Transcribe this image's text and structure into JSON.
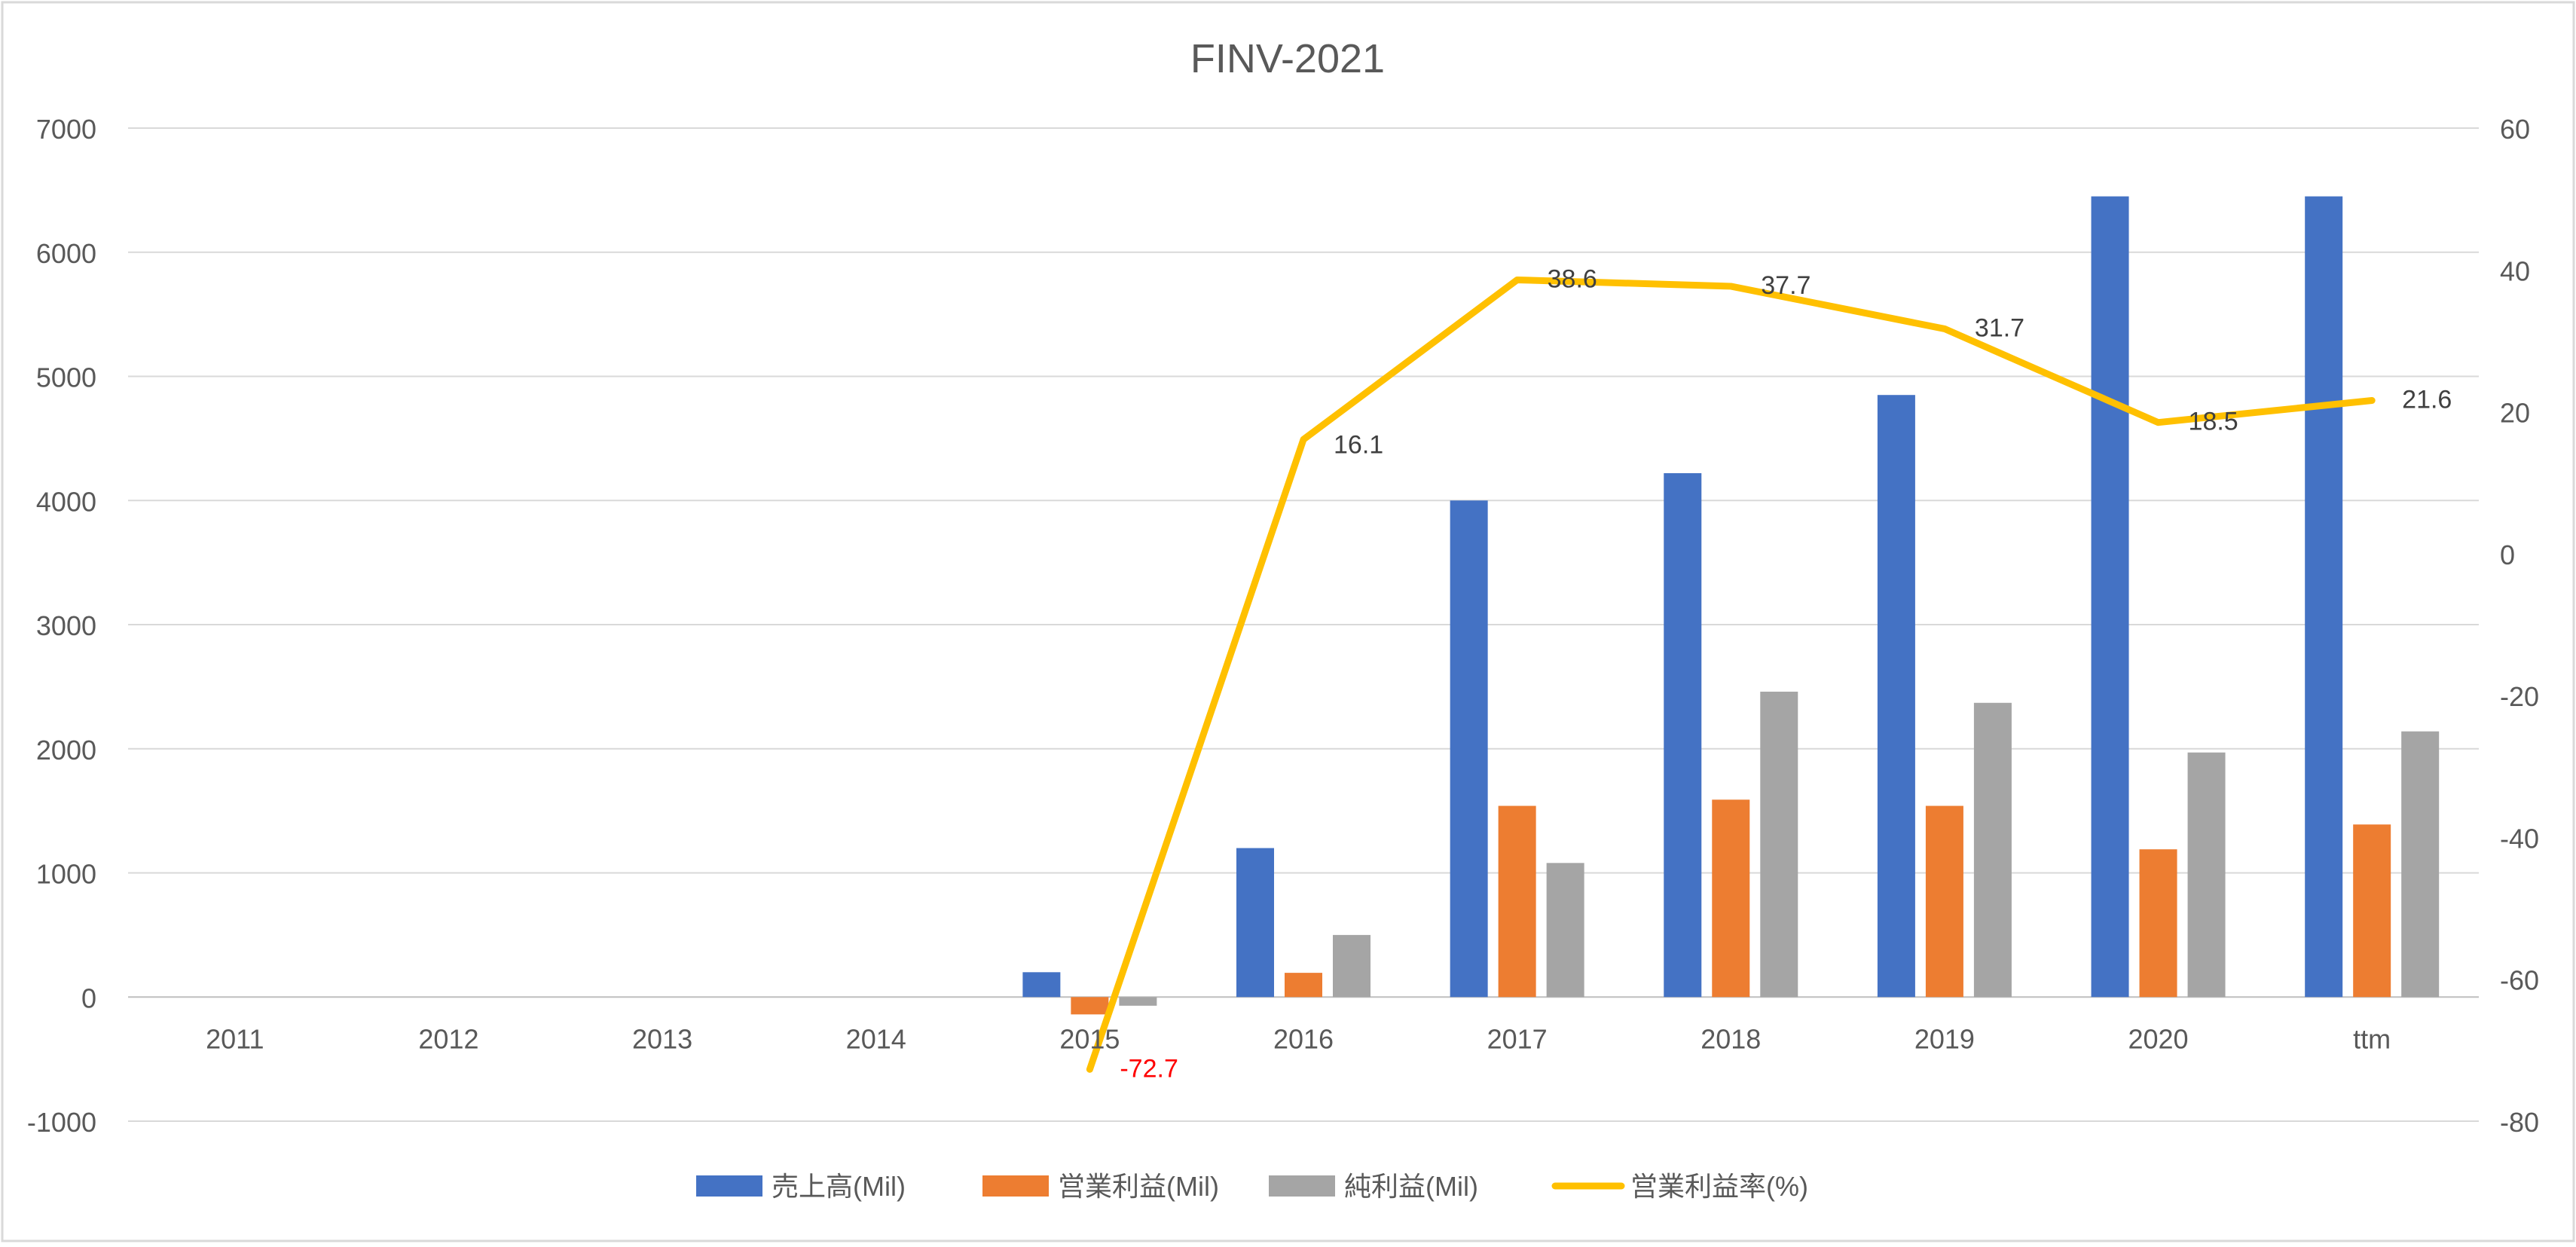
{
  "chart_data": {
    "type": "bar",
    "title": "FINV-2021",
    "categories": [
      "2011",
      "2012",
      "2013",
      "2014",
      "2015",
      "2016",
      "2017",
      "2018",
      "2019",
      "2020",
      "ttm"
    ],
    "ylim": [
      -1000,
      7000
    ],
    "y_ticks": [
      "-1000",
      "0",
      "1000",
      "2000",
      "3000",
      "4000",
      "5000",
      "6000",
      "7000"
    ],
    "y2lim": [
      -80,
      60
    ],
    "y2_ticks": [
      "-80",
      "-60",
      "-40",
      "-20",
      "0",
      "20",
      "40",
      "60"
    ],
    "grid": true,
    "legend_position": "bottom",
    "series": [
      {
        "name": "売上高(Mil)",
        "type": "bar",
        "axis": "left",
        "color": "#4472C4",
        "values": [
          null,
          null,
          null,
          null,
          200,
          1200,
          4000,
          4220,
          4850,
          6450,
          6450
        ]
      },
      {
        "name": "営業利益(Mil)",
        "type": "bar",
        "axis": "left",
        "color": "#ED7D31",
        "values": [
          null,
          null,
          null,
          null,
          -140,
          195,
          1540,
          1590,
          1540,
          1190,
          1390
        ]
      },
      {
        "name": "純利益(Mil)",
        "type": "bar",
        "axis": "left",
        "color": "#A5A5A5",
        "values": [
          null,
          null,
          null,
          null,
          -70,
          500,
          1080,
          2460,
          2370,
          1970,
          2140
        ]
      },
      {
        "name": "営業利益率(%)",
        "type": "line",
        "axis": "right",
        "color": "#FFC000",
        "values": [
          null,
          null,
          null,
          null,
          -72.7,
          16.1,
          38.6,
          37.7,
          31.7,
          18.5,
          21.6
        ],
        "labels": [
          "",
          "",
          "",
          "",
          "-72.7",
          "16.1",
          "38.6",
          "37.7",
          "31.7",
          "18.5",
          "21.6"
        ],
        "negative_label_color": "#FF0000"
      }
    ]
  }
}
